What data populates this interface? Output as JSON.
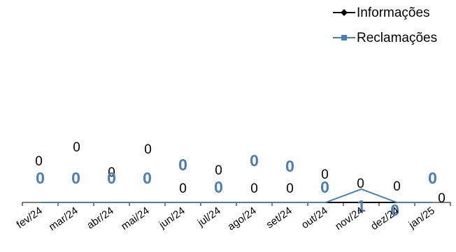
{
  "chart_data": {
    "type": "line",
    "categories": [
      "fev/24",
      "mar/24",
      "abr/24",
      "mai/24",
      "jun/24",
      "jul/24",
      "ago/24",
      "set/24",
      "out/24",
      "nov/24",
      "dez/24",
      "jan/25"
    ],
    "series": [
      {
        "name": "Informações",
        "values": [
          0,
          0,
          0,
          0,
          0,
          0,
          0,
          0,
          0,
          0,
          0,
          0
        ],
        "color": "#000000",
        "marker": "diamond"
      },
      {
        "name": "Reclamações",
        "values": [
          0,
          0,
          0,
          0,
          0,
          0,
          0,
          0,
          0,
          1,
          0,
          0
        ],
        "color": "#4a7ebb",
        "marker": "square"
      }
    ],
    "ylim": [
      0,
      1
    ],
    "grid": false,
    "legend_position": "top-right",
    "title": "",
    "xlabel": "",
    "ylabel": ""
  }
}
